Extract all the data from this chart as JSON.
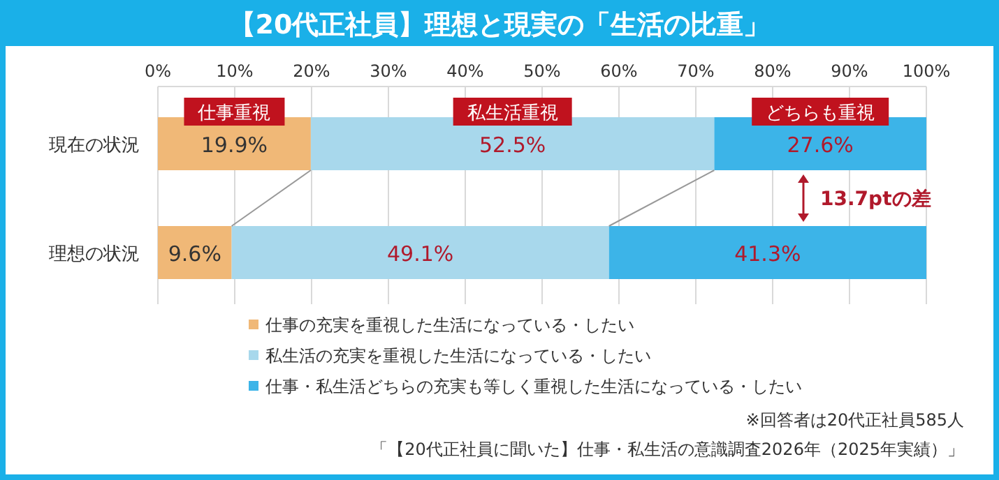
{
  "chart_data": {
    "type": "bar",
    "orientation": "horizontal",
    "stacked": true,
    "title": "【20代正社員】理想と現実の「生活の比重」",
    "categories": [
      "現在の状況",
      "理想の状況"
    ],
    "series": [
      {
        "name": "仕事の充実を重視した生活になっている・したい",
        "color": "#f0b877",
        "values": [
          19.9,
          9.6
        ],
        "value_labels": [
          "19.9%",
          "9.6%"
        ]
      },
      {
        "name": "私生活の充実を重視した生活になっている・したい",
        "color": "#a8d8ec",
        "values": [
          52.5,
          49.1
        ],
        "value_labels": [
          "52.5%",
          "49.1%"
        ]
      },
      {
        "name": "仕事・私生活どちらの充実も等しく重視した生活になっている・したい",
        "color": "#3cb4e8",
        "values": [
          27.6,
          41.3
        ],
        "value_labels": [
          "27.6%",
          "41.3%"
        ]
      }
    ],
    "xlim": [
      0,
      100
    ],
    "xticks": [
      {
        "value": 0,
        "label": "0%"
      },
      {
        "value": 10,
        "label": "10%"
      },
      {
        "value": 20,
        "label": "20%"
      },
      {
        "value": 30,
        "label": "30%"
      },
      {
        "value": 40,
        "label": "40%"
      },
      {
        "value": 50,
        "label": "50%"
      },
      {
        "value": 60,
        "label": "60%"
      },
      {
        "value": 70,
        "label": "70%"
      },
      {
        "value": 80,
        "label": "80%"
      },
      {
        "value": 90,
        "label": "90%"
      },
      {
        "value": 100,
        "label": "100%"
      }
    ],
    "grid": "x",
    "legend": "bottom",
    "annotations": [
      "仕事重視",
      "私生活重視",
      "どちらも重視",
      "13.7ptの差",
      "※回答者は20代正社員585人",
      "「【20代正社員に聞いた】仕事・私生活の意識調査2026年（2025年実績）」"
    ]
  }
}
